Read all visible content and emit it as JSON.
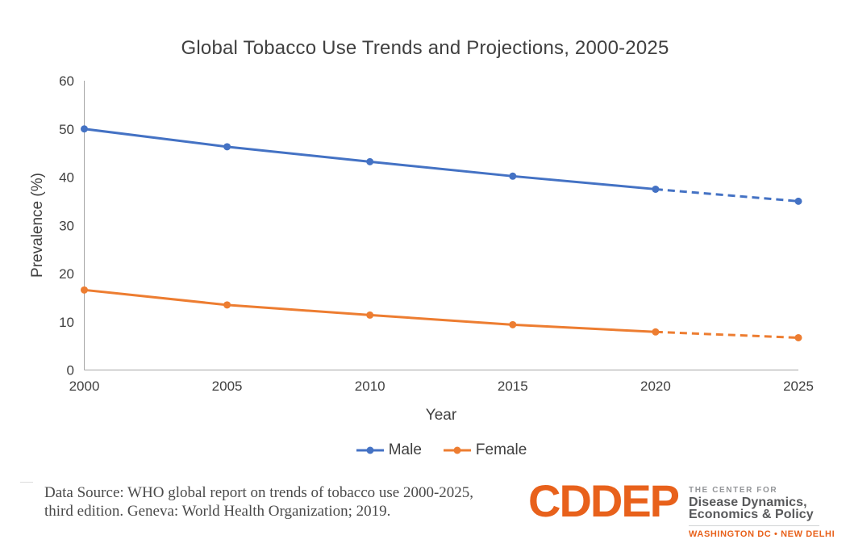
{
  "chart_data": {
    "type": "line",
    "title": "Global Tobacco Use Trends and Projections, 2000-2025",
    "xlabel": "Year",
    "ylabel": "Prevalence (%)",
    "x": [
      2000,
      2005,
      2010,
      2015,
      2020,
      2025
    ],
    "xlim": [
      2000,
      2025
    ],
    "ylim": [
      0,
      60
    ],
    "yticks": [
      0,
      10,
      20,
      30,
      40,
      50,
      60
    ],
    "grid": false,
    "legend_position": "bottom-center",
    "projection_note": "values from 2020 to 2025 drawn as dashed projection",
    "series": [
      {
        "name": "Male",
        "color": "#4472C4",
        "values": [
          50.0,
          46.3,
          43.2,
          40.2,
          37.5,
          35.0
        ],
        "projection_start_index": 4
      },
      {
        "name": "Female",
        "color": "#ED7D31",
        "values": [
          16.6,
          13.5,
          11.4,
          9.4,
          7.9,
          6.7
        ],
        "projection_start_index": 4
      }
    ]
  },
  "colors": {
    "axis": "#A6A6A6",
    "tick_text": "#404040",
    "title_text": "#404040",
    "footer_text": "#4A4A4A",
    "logo_orange": "#E8611B",
    "logo_gray": "#58595B"
  },
  "footer": {
    "source_line1": "Data Source: WHO global report on trends of tobacco use 2000-2025,",
    "source_line2": "third edition. Geneva: World Health Organization; 2019."
  },
  "logo": {
    "wordmark": "CDDEP",
    "center_for": "THE CENTER FOR",
    "line1": "Disease Dynamics,",
    "line2": "Economics & Policy",
    "locations": "WASHINGTON DC • NEW DELHI"
  }
}
